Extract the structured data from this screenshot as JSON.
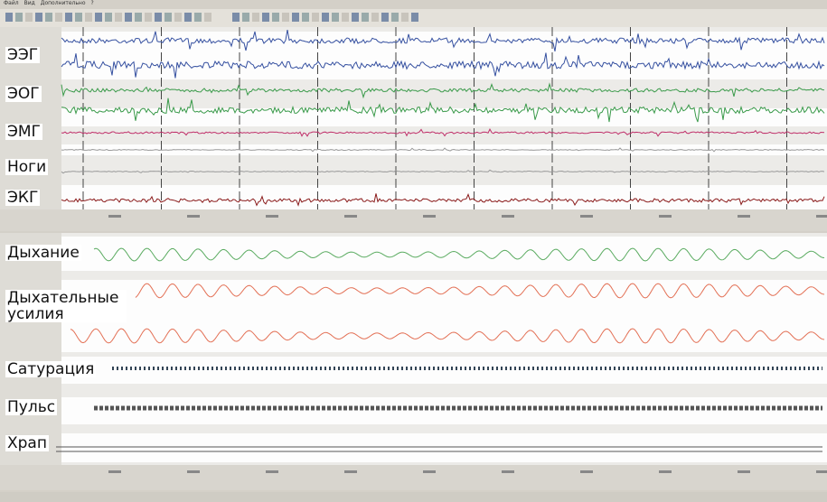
{
  "menu": [
    "Файл",
    "Вид",
    "Дополнительно",
    "?"
  ],
  "upper_channels": [
    "ЭЭГ",
    "ЭОГ",
    "ЭМГ",
    "Ноги",
    "ЭКГ"
  ],
  "lower_channels": [
    "Дыхание",
    "Дыхательные усилия",
    "Сатурация",
    "Пульс",
    "Храп"
  ]
}
